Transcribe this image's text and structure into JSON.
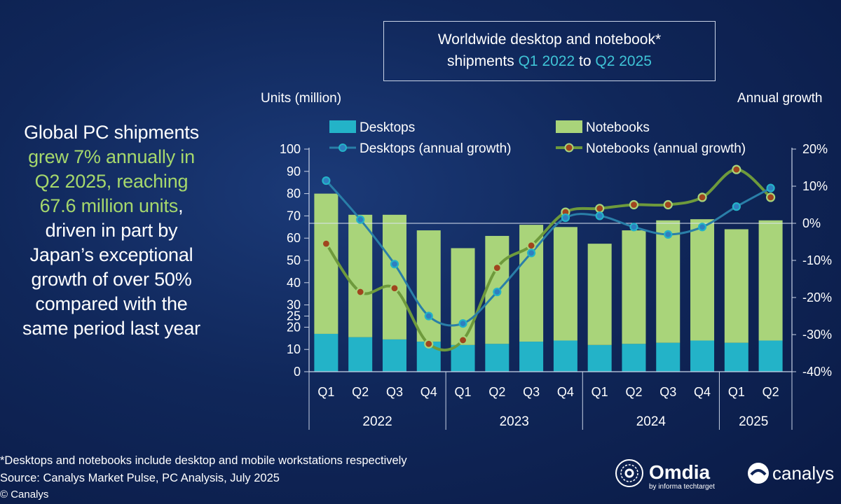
{
  "title": {
    "line1": "Worldwide desktop and notebook*",
    "line2_prefix": "shipments ",
    "line2_start": "Q1 2022",
    "line2_mid": " to ",
    "line2_end": "Q2 2025"
  },
  "headline": {
    "line1": "Global PC shipments",
    "line2": "grew 7% annually in",
    "line3": "Q2 2025, reaching",
    "line4": "67.6 million units",
    "line4_suffix": ",",
    "line5": "driven in part by",
    "line6": "Japan’s exceptional",
    "line7": "growth of over 50%",
    "line8": "compared with the",
    "line9": "same period last year"
  },
  "footnote": "*Desktops and notebooks include desktop and mobile workstations respectively",
  "source": "Source: Canalys Market Pulse, PC Analysis, July 2025",
  "copyright": "© Canalys",
  "logos": {
    "omdia": "Omdia",
    "omdia_sub": "by informa techtarget",
    "canalys": "canalys"
  },
  "colors": {
    "desktops": "#23b3c8",
    "notebooks": "#a9d47a",
    "desktop_line": "#2a7fa8",
    "notebook_line": "#6e9a3c",
    "notebook_dot": "#a0451e",
    "desktop_dot": "#2f7fbf"
  },
  "chart_data": {
    "type": "bar+line",
    "ylabel_left": "Units (million)",
    "ylabel_right": "Annual growth",
    "ylim_left": [
      0,
      100
    ],
    "yticks_left": [
      "0",
      "10",
      "20",
      "25",
      "30",
      "40",
      "50",
      "60",
      "70",
      "80",
      "90",
      "100"
    ],
    "ylim_right": [
      -40,
      20
    ],
    "yticks_right": [
      "-40%",
      "-30%",
      "-20%",
      "-10%",
      "0%",
      "10%",
      "20%"
    ],
    "categories": [
      "Q1",
      "Q2",
      "Q3",
      "Q4",
      "Q1",
      "Q2",
      "Q3",
      "Q4",
      "Q1",
      "Q2",
      "Q3",
      "Q4",
      "Q1",
      "Q2"
    ],
    "years": [
      {
        "label": "2022",
        "span": 4
      },
      {
        "label": "2023",
        "span": 4
      },
      {
        "label": "2024",
        "span": 4
      },
      {
        "label": "2025",
        "span": 2
      }
    ],
    "legend": {
      "desktops": "Desktops",
      "notebooks": "Notebooks",
      "desktops_growth": "Desktops (annual growth)",
      "notebooks_growth": "Notebooks (annual growth)"
    },
    "series": [
      {
        "name": "Desktops",
        "kind": "stacked-bar",
        "values": [
          17,
          15.5,
          14.5,
          13.5,
          12,
          12.5,
          13.5,
          14,
          12,
          12.5,
          13,
          14,
          13,
          14
        ]
      },
      {
        "name": "Notebooks",
        "kind": "stacked-bar",
        "values": [
          63,
          55,
          56,
          50,
          43.5,
          48.5,
          52.5,
          51,
          45.5,
          51,
          55,
          54.5,
          51,
          54
        ]
      },
      {
        "name": "Desktops (annual growth)",
        "kind": "line",
        "axis": "right",
        "values": [
          11.5,
          1,
          -11,
          -25,
          -27,
          -18.5,
          -8,
          1.5,
          2,
          -1,
          -3,
          -1,
          4.5,
          9.5
        ]
      },
      {
        "name": "Notebooks (annual growth)",
        "kind": "line",
        "axis": "right",
        "values": [
          -5.5,
          -18.5,
          -17.5,
          -32.5,
          -31.5,
          -12,
          -6,
          3,
          4,
          5,
          5,
          7,
          14.5,
          7
        ]
      }
    ]
  }
}
